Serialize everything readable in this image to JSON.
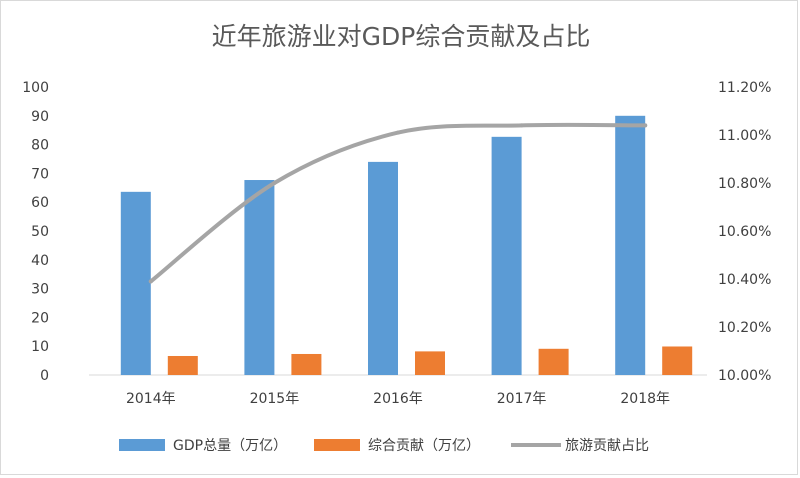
{
  "chart_data": {
    "type": "bar",
    "title": "近年旅游业对GDP综合贡献及占比",
    "categories": [
      "2014年",
      "2015年",
      "2016年",
      "2017年",
      "2018年"
    ],
    "series": [
      {
        "name": "GDP总量（万亿）",
        "type": "bar",
        "axis": "left",
        "color": "#5b9bd5",
        "values": [
          63.6,
          67.7,
          74.0,
          82.7,
          90.0
        ]
      },
      {
        "name": "综合贡献（万亿）",
        "type": "bar",
        "axis": "left",
        "color": "#ed7d31",
        "values": [
          6.6,
          7.3,
          8.2,
          9.1,
          9.9
        ]
      },
      {
        "name": "旅游贡献占比",
        "type": "line",
        "axis": "right",
        "color": "#a5a5a5",
        "values": [
          10.39,
          10.8,
          11.01,
          11.04,
          11.04
        ]
      }
    ],
    "y_left": {
      "min": 0,
      "max": 100,
      "step": 10,
      "ticks": [
        "0",
        "10",
        "20",
        "30",
        "40",
        "50",
        "60",
        "70",
        "80",
        "90",
        "100"
      ]
    },
    "y_right": {
      "min": 10.0,
      "max": 11.2,
      "step": 0.2,
      "ticks": [
        "10.00%",
        "10.20%",
        "10.40%",
        "10.60%",
        "10.80%",
        "11.00%",
        "11.20%"
      ]
    },
    "grid": false,
    "legend": "bottom"
  }
}
